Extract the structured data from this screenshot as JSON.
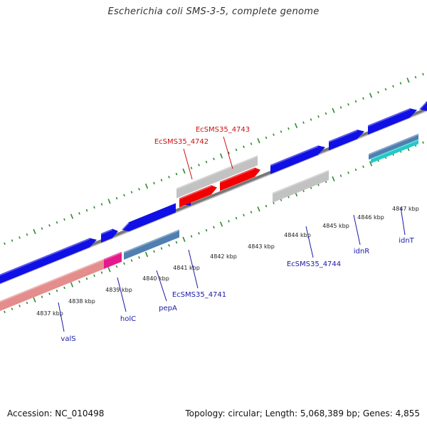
{
  "title": "Escherichia coli SMS-3-5, complete genome",
  "footer": {
    "accession": "Accession: NC_010498",
    "stats": "Topology: circular; Length: 5,068,389 bp; Genes: 4,855"
  },
  "colors": {
    "backbone": "#8c8c8c",
    "tick": "#2e8b2e",
    "forward_gene": "#1010e6",
    "pseudo_gene": "#c2c2c2",
    "red_gene": "#f00000",
    "rna_gene": "#e58c8c",
    "magenta_gene": "#e6188c",
    "steel_gene": "#4f7fb0",
    "cyan_gene": "#23c8c8",
    "label_blue": "#1a1aa8",
    "label_red": "#cc1111"
  },
  "scale": {
    "unit": "kbp",
    "ticks": [
      {
        "label": "4837 kbp"
      },
      {
        "label": "4838 kbp"
      },
      {
        "label": "4839 kbp"
      },
      {
        "label": "4840 kbp"
      },
      {
        "label": "4841 kbp"
      },
      {
        "label": "4842 kbp"
      },
      {
        "label": "4843 kbp"
      },
      {
        "label": "4844 kbp"
      },
      {
        "label": "4845 kbp"
      },
      {
        "label": "4846 kbp"
      },
      {
        "label": "4847 kbp"
      }
    ]
  },
  "gene_labels": [
    {
      "name": "valS",
      "color": "blue"
    },
    {
      "name": "holC",
      "color": "blue"
    },
    {
      "name": "pepA",
      "color": "blue"
    },
    {
      "name": "EcSMS35_4741",
      "color": "blue"
    },
    {
      "name": "EcSMS35_4742",
      "color": "red"
    },
    {
      "name": "EcSMS35_4743",
      "color": "red"
    },
    {
      "name": "EcSMS35_4744",
      "color": "blue"
    },
    {
      "name": "idnR",
      "color": "blue"
    },
    {
      "name": "idnT",
      "color": "blue"
    }
  ]
}
